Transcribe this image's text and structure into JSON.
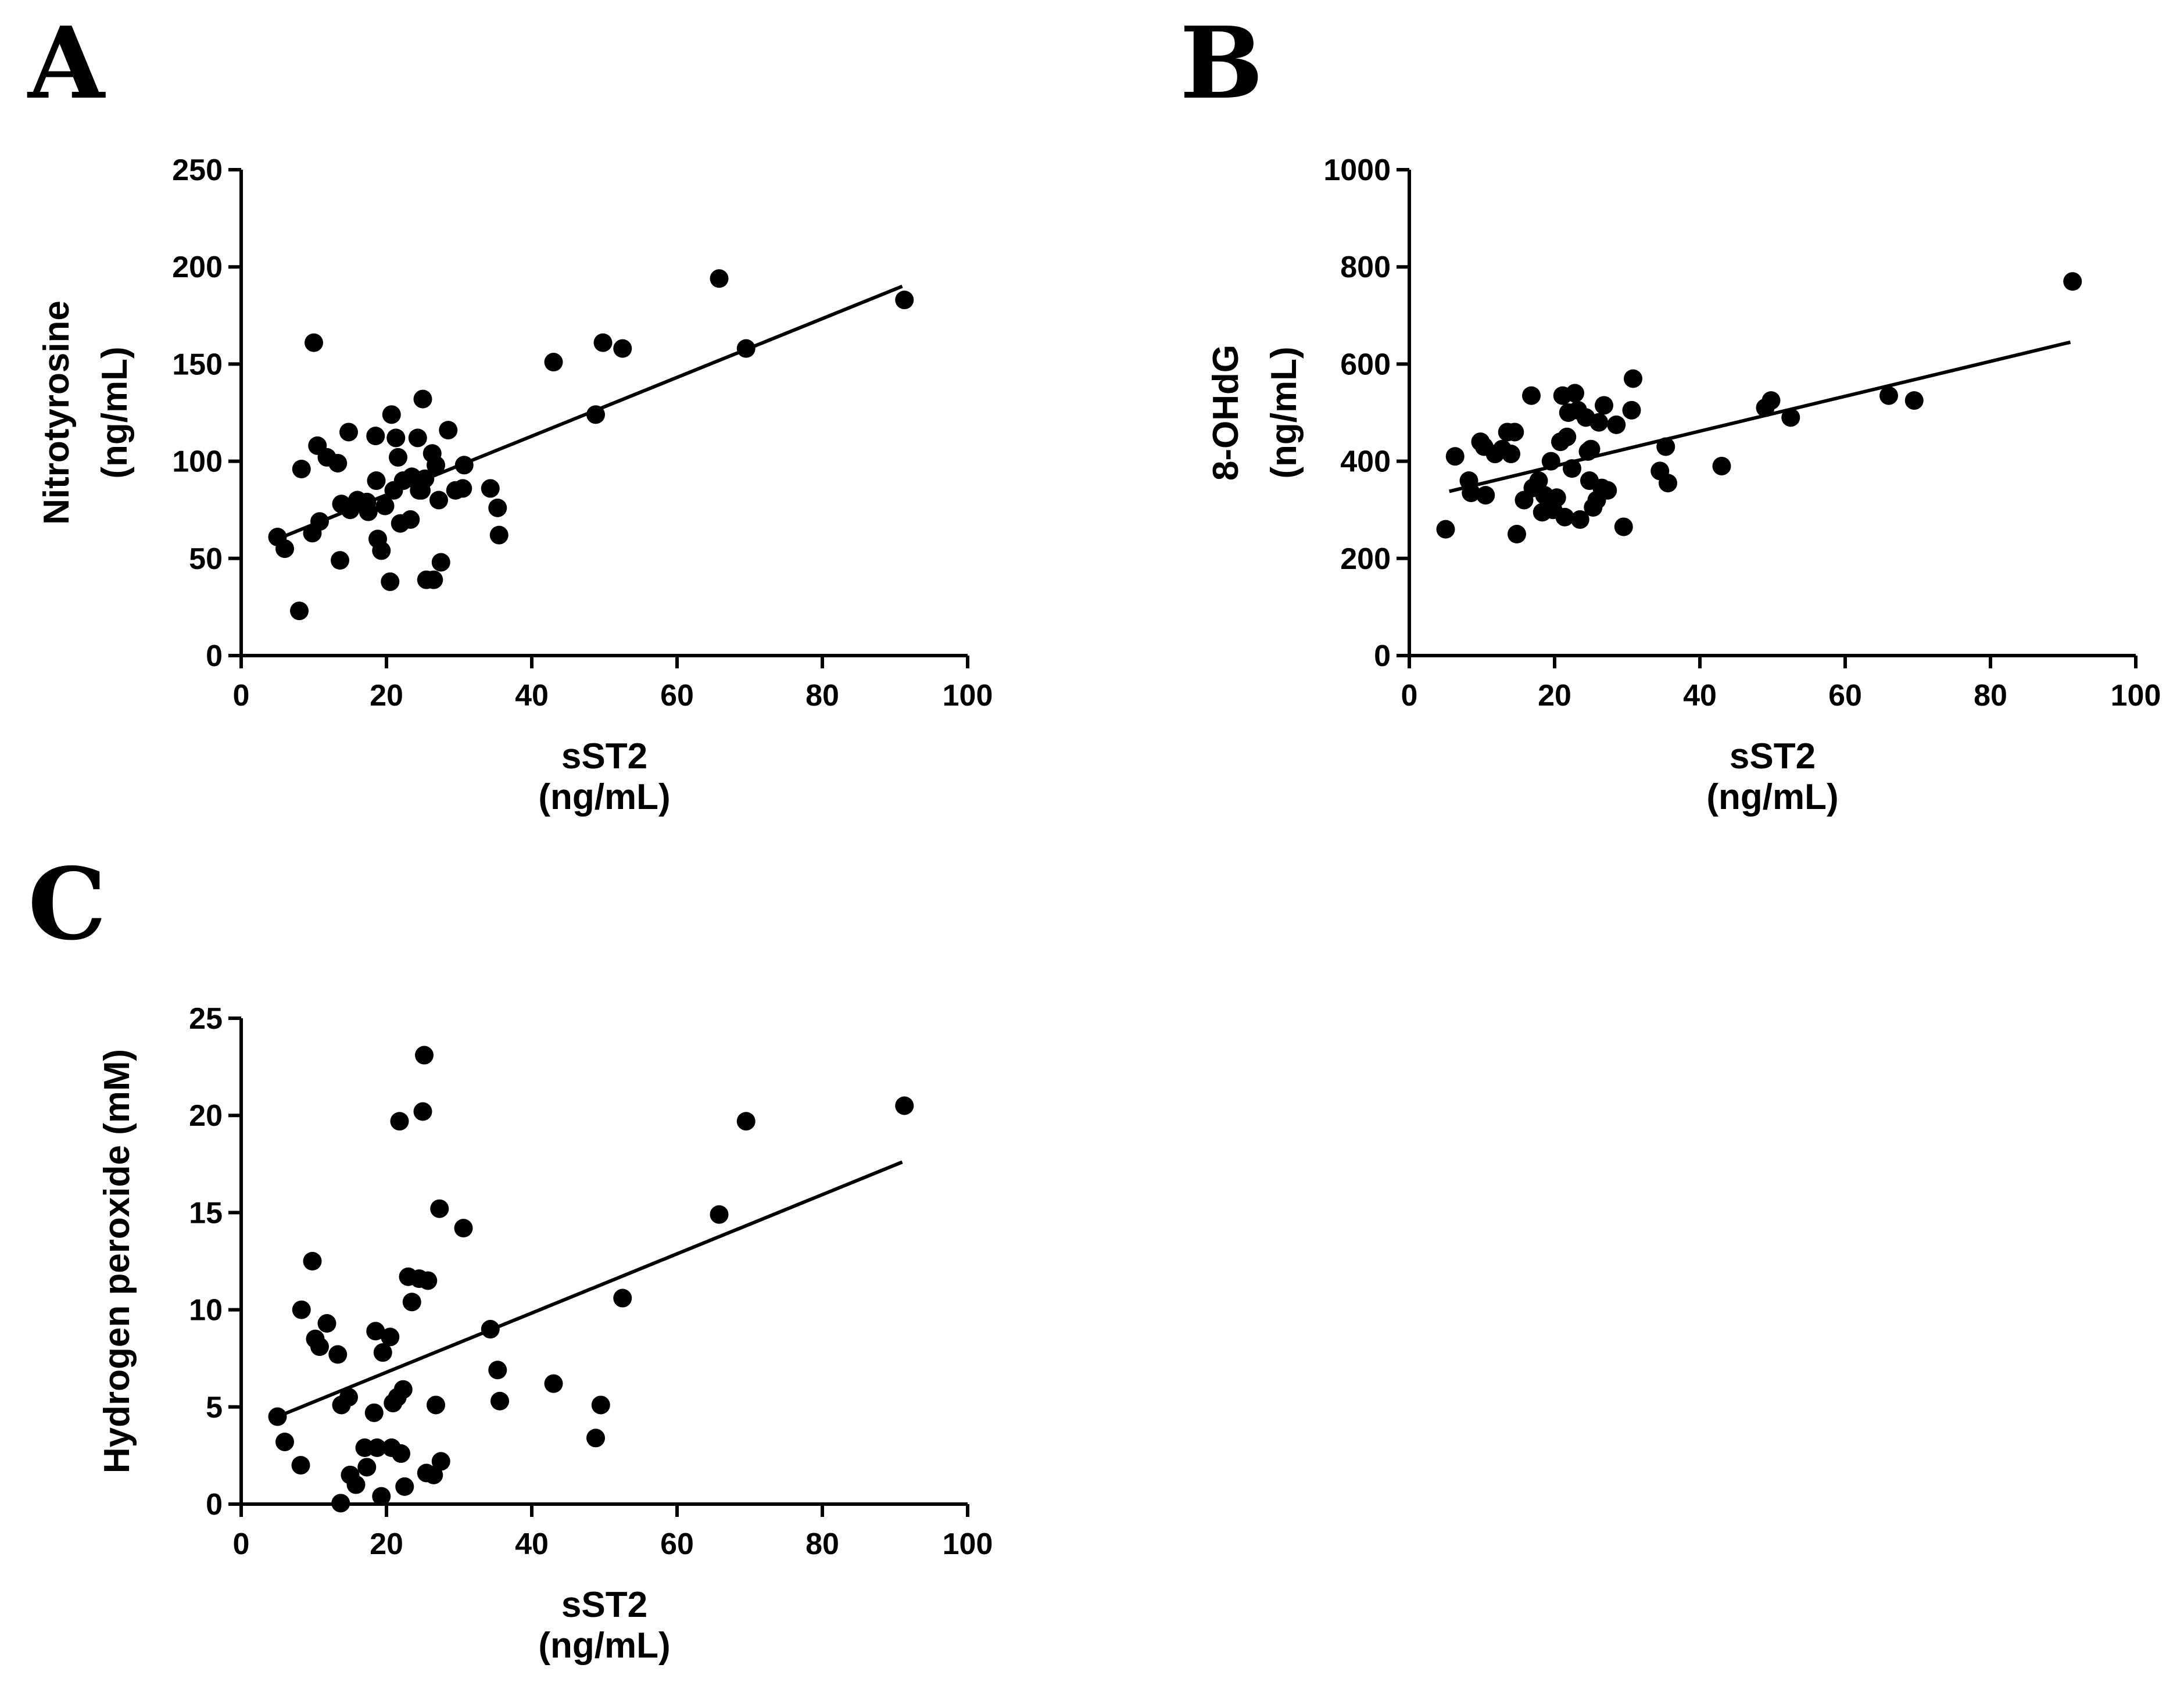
{
  "figure": {
    "panel_labels": [
      "A",
      "B",
      "C"
    ]
  },
  "chart_data": [
    {
      "panel": "A",
      "type": "scatter",
      "title": "",
      "xlabel": [
        "sST2",
        "(ng/mL)"
      ],
      "ylabel": [
        "Nitrotyrosine",
        "(ng/mL)"
      ],
      "xlim": [
        0,
        100
      ],
      "ylim": [
        0,
        250
      ],
      "xticks": [
        "0",
        "20",
        "40",
        "60",
        "80",
        "100"
      ],
      "yticks": [
        "0",
        "50",
        "100",
        "150",
        "200",
        "250"
      ],
      "xtick_values": [
        0,
        20,
        40,
        60,
        80,
        100
      ],
      "ytick_values": [
        0,
        50,
        100,
        150,
        200,
        250
      ],
      "grid": false,
      "legend": "none",
      "fit_line": {
        "x": [
          5,
          91
        ],
        "y": [
          60,
          190
        ]
      },
      "points": [
        {
          "x": 5,
          "y": 61
        },
        {
          "x": 6,
          "y": 55
        },
        {
          "x": 8,
          "y": 23
        },
        {
          "x": 8.3,
          "y": 96
        },
        {
          "x": 9.8,
          "y": 63
        },
        {
          "x": 10,
          "y": 161
        },
        {
          "x": 10.5,
          "y": 108
        },
        {
          "x": 10.8,
          "y": 69
        },
        {
          "x": 11.8,
          "y": 102
        },
        {
          "x": 13.3,
          "y": 99
        },
        {
          "x": 13.6,
          "y": 49
        },
        {
          "x": 13.8,
          "y": 78
        },
        {
          "x": 14.8,
          "y": 115
        },
        {
          "x": 15,
          "y": 75
        },
        {
          "x": 16,
          "y": 80
        },
        {
          "x": 17.3,
          "y": 79
        },
        {
          "x": 17.5,
          "y": 74
        },
        {
          "x": 18.5,
          "y": 113
        },
        {
          "x": 18.6,
          "y": 90
        },
        {
          "x": 18.8,
          "y": 60
        },
        {
          "x": 19.3,
          "y": 54
        },
        {
          "x": 19.8,
          "y": 77
        },
        {
          "x": 20.5,
          "y": 38
        },
        {
          "x": 20.7,
          "y": 124
        },
        {
          "x": 21,
          "y": 85
        },
        {
          "x": 21.3,
          "y": 112
        },
        {
          "x": 21.6,
          "y": 102
        },
        {
          "x": 21.9,
          "y": 68
        },
        {
          "x": 22.3,
          "y": 90
        },
        {
          "x": 23.3,
          "y": 70
        },
        {
          "x": 23.5,
          "y": 92
        },
        {
          "x": 24.3,
          "y": 112
        },
        {
          "x": 24.5,
          "y": 85
        },
        {
          "x": 24.8,
          "y": 85
        },
        {
          "x": 25,
          "y": 132
        },
        {
          "x": 25.3,
          "y": 91
        },
        {
          "x": 25.5,
          "y": 39
        },
        {
          "x": 26.3,
          "y": 104
        },
        {
          "x": 26.5,
          "y": 39
        },
        {
          "x": 26.8,
          "y": 98
        },
        {
          "x": 27.2,
          "y": 80
        },
        {
          "x": 27.5,
          "y": 48
        },
        {
          "x": 28.5,
          "y": 116
        },
        {
          "x": 29.5,
          "y": 85
        },
        {
          "x": 30.5,
          "y": 86
        },
        {
          "x": 30.7,
          "y": 98
        },
        {
          "x": 34.3,
          "y": 86
        },
        {
          "x": 35.3,
          "y": 76
        },
        {
          "x": 35.5,
          "y": 62
        },
        {
          "x": 43,
          "y": 151
        },
        {
          "x": 48.8,
          "y": 124
        },
        {
          "x": 49.8,
          "y": 161
        },
        {
          "x": 52.5,
          "y": 158
        },
        {
          "x": 65.8,
          "y": 194
        },
        {
          "x": 69.5,
          "y": 158
        },
        {
          "x": 91.3,
          "y": 183
        }
      ]
    },
    {
      "panel": "B",
      "type": "scatter",
      "title": "",
      "xlabel": [
        "sST2",
        "(ng/mL)"
      ],
      "ylabel": [
        "8-OHdG",
        "(ng/mL)"
      ],
      "xlim": [
        0,
        100
      ],
      "ylim": [
        0,
        1000
      ],
      "xticks": [
        "0",
        "20",
        "40",
        "60",
        "80",
        "100"
      ],
      "yticks": [
        "0",
        "200",
        "400",
        "600",
        "800",
        "1000"
      ],
      "xtick_values": [
        0,
        20,
        40,
        60,
        80,
        100
      ],
      "ytick_values": [
        0,
        200,
        400,
        600,
        800,
        1000
      ],
      "grid": false,
      "legend": "none",
      "fit_line": {
        "x": [
          5.5,
          91
        ],
        "y": [
          338,
          645
        ]
      },
      "points": [
        {
          "x": 5,
          "y": 260
        },
        {
          "x": 6.3,
          "y": 410
        },
        {
          "x": 8.2,
          "y": 360
        },
        {
          "x": 8.5,
          "y": 335
        },
        {
          "x": 9.8,
          "y": 440
        },
        {
          "x": 10.3,
          "y": 430
        },
        {
          "x": 10.5,
          "y": 330
        },
        {
          "x": 11.8,
          "y": 415
        },
        {
          "x": 12.8,
          "y": 425
        },
        {
          "x": 13.5,
          "y": 460
        },
        {
          "x": 14,
          "y": 415
        },
        {
          "x": 14.5,
          "y": 460
        },
        {
          "x": 14.8,
          "y": 250
        },
        {
          "x": 15.8,
          "y": 320
        },
        {
          "x": 16.8,
          "y": 535
        },
        {
          "x": 17,
          "y": 345
        },
        {
          "x": 17.8,
          "y": 360
        },
        {
          "x": 18.3,
          "y": 295
        },
        {
          "x": 18.6,
          "y": 330
        },
        {
          "x": 19.5,
          "y": 400
        },
        {
          "x": 19.8,
          "y": 300
        },
        {
          "x": 20.3,
          "y": 325
        },
        {
          "x": 20.8,
          "y": 440
        },
        {
          "x": 21.1,
          "y": 535
        },
        {
          "x": 21.4,
          "y": 285
        },
        {
          "x": 21.7,
          "y": 450
        },
        {
          "x": 21.9,
          "y": 500
        },
        {
          "x": 22.4,
          "y": 385
        },
        {
          "x": 22.8,
          "y": 540
        },
        {
          "x": 23.2,
          "y": 505
        },
        {
          "x": 23.5,
          "y": 280
        },
        {
          "x": 24.3,
          "y": 490
        },
        {
          "x": 24.6,
          "y": 420
        },
        {
          "x": 24.8,
          "y": 360
        },
        {
          "x": 25,
          "y": 425
        },
        {
          "x": 25.3,
          "y": 305
        },
        {
          "x": 25.8,
          "y": 320
        },
        {
          "x": 26.1,
          "y": 480
        },
        {
          "x": 26.5,
          "y": 345
        },
        {
          "x": 26.8,
          "y": 515
        },
        {
          "x": 27.3,
          "y": 340
        },
        {
          "x": 28.5,
          "y": 475
        },
        {
          "x": 29.5,
          "y": 265
        },
        {
          "x": 30.6,
          "y": 505
        },
        {
          "x": 30.8,
          "y": 570
        },
        {
          "x": 34.5,
          "y": 380
        },
        {
          "x": 35.3,
          "y": 430
        },
        {
          "x": 35.6,
          "y": 355
        },
        {
          "x": 43,
          "y": 390
        },
        {
          "x": 49,
          "y": 510
        },
        {
          "x": 49.8,
          "y": 525
        },
        {
          "x": 52.5,
          "y": 490
        },
        {
          "x": 66,
          "y": 535
        },
        {
          "x": 69.5,
          "y": 525
        },
        {
          "x": 91.3,
          "y": 770
        }
      ]
    },
    {
      "panel": "C",
      "type": "scatter",
      "title": "",
      "xlabel": [
        "sST2",
        "(ng/mL)"
      ],
      "ylabel": [
        "Hydrogen peroxide (mM)"
      ],
      "xlim": [
        0,
        100
      ],
      "ylim": [
        0,
        25
      ],
      "xticks": [
        "0",
        "20",
        "40",
        "60",
        "80",
        "100"
      ],
      "yticks": [
        "0",
        "5",
        "10",
        "15",
        "20",
        "25"
      ],
      "xtick_values": [
        0,
        20,
        40,
        60,
        80,
        100
      ],
      "ytick_values": [
        0,
        5,
        10,
        15,
        20,
        25
      ],
      "grid": false,
      "legend": "none",
      "fit_line": {
        "x": [
          5,
          91
        ],
        "y": [
          4.5,
          17.6
        ]
      },
      "points": [
        {
          "x": 5,
          "y": 4.5
        },
        {
          "x": 6,
          "y": 3.2
        },
        {
          "x": 8.2,
          "y": 2.0
        },
        {
          "x": 8.3,
          "y": 10.0
        },
        {
          "x": 9.8,
          "y": 12.5
        },
        {
          "x": 10.2,
          "y": 8.5
        },
        {
          "x": 10.8,
          "y": 8.1
        },
        {
          "x": 11.8,
          "y": 9.3
        },
        {
          "x": 13.3,
          "y": 7.7
        },
        {
          "x": 13.7,
          "y": 0.05
        },
        {
          "x": 13.8,
          "y": 5.1
        },
        {
          "x": 14.8,
          "y": 5.5
        },
        {
          "x": 15,
          "y": 1.5
        },
        {
          "x": 15.8,
          "y": 1.0
        },
        {
          "x": 17,
          "y": 2.9
        },
        {
          "x": 17.3,
          "y": 1.9
        },
        {
          "x": 18.3,
          "y": 4.7
        },
        {
          "x": 18.5,
          "y": 8.9
        },
        {
          "x": 18.7,
          "y": 2.9
        },
        {
          "x": 19.3,
          "y": 0.4
        },
        {
          "x": 19.5,
          "y": 7.8
        },
        {
          "x": 20.5,
          "y": 8.6
        },
        {
          "x": 20.7,
          "y": 2.9
        },
        {
          "x": 20.9,
          "y": 5.2
        },
        {
          "x": 21.5,
          "y": 5.5
        },
        {
          "x": 21.8,
          "y": 19.7
        },
        {
          "x": 22,
          "y": 2.6
        },
        {
          "x": 22.3,
          "y": 5.9
        },
        {
          "x": 22.5,
          "y": 0.9
        },
        {
          "x": 23,
          "y": 11.7
        },
        {
          "x": 23.5,
          "y": 10.4
        },
        {
          "x": 24.5,
          "y": 11.6
        },
        {
          "x": 25,
          "y": 20.2
        },
        {
          "x": 25.2,
          "y": 23.1
        },
        {
          "x": 25.5,
          "y": 1.6
        },
        {
          "x": 25.7,
          "y": 11.5
        },
        {
          "x": 26.5,
          "y": 1.5
        },
        {
          "x": 26.8,
          "y": 5.1
        },
        {
          "x": 27.3,
          "y": 15.2
        },
        {
          "x": 27.5,
          "y": 2.2
        },
        {
          "x": 30.6,
          "y": 14.2
        },
        {
          "x": 34.3,
          "y": 9.0
        },
        {
          "x": 35.3,
          "y": 6.9
        },
        {
          "x": 35.6,
          "y": 5.3
        },
        {
          "x": 43,
          "y": 6.2
        },
        {
          "x": 48.8,
          "y": 3.4
        },
        {
          "x": 49.5,
          "y": 5.1
        },
        {
          "x": 52.5,
          "y": 10.6
        },
        {
          "x": 65.8,
          "y": 14.9
        },
        {
          "x": 69.5,
          "y": 19.7
        },
        {
          "x": 91.3,
          "y": 20.5
        }
      ]
    }
  ]
}
